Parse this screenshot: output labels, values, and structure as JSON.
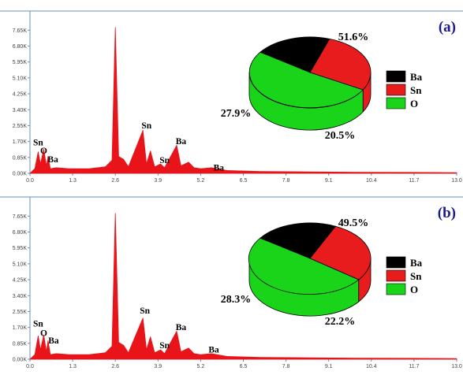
{
  "colors": {
    "spectrum": "#e8141a",
    "Ba": "#000000",
    "Sn": "#e81c1c",
    "O": "#19d419",
    "axis": "#6b8fbf",
    "panel_label": "#1a1a8a"
  },
  "chart_data": [
    {
      "panel_label": "(a)",
      "type": "area",
      "y_ticks": [
        "0.00K",
        "0.85K",
        "1.70K",
        "2.55K",
        "3.40K",
        "4.25K",
        "5.10K",
        "5.95K",
        "6.80K",
        "7.65K"
      ],
      "x_ticks": [
        "0.0",
        "1.3",
        "2.6",
        "3.9",
        "5.2",
        "6.5",
        "7.8",
        "9.1",
        "10.4",
        "11.7",
        "13.0"
      ],
      "xlim": [
        0,
        13
      ],
      "ylim": [
        0,
        8.0
      ],
      "spectrum": [
        [
          0.0,
          0.0
        ],
        [
          0.15,
          0.25
        ],
        [
          0.25,
          1.15
        ],
        [
          0.32,
          0.5
        ],
        [
          0.42,
          1.3
        ],
        [
          0.5,
          0.4
        ],
        [
          0.55,
          0.9
        ],
        [
          0.62,
          0.25
        ],
        [
          0.8,
          0.3
        ],
        [
          1.2,
          0.25
        ],
        [
          1.8,
          0.25
        ],
        [
          2.3,
          0.35
        ],
        [
          2.5,
          0.7
        ],
        [
          2.6,
          7.8
        ],
        [
          2.7,
          0.9
        ],
        [
          2.85,
          0.75
        ],
        [
          3.0,
          0.35
        ],
        [
          3.44,
          2.3
        ],
        [
          3.55,
          0.5
        ],
        [
          3.67,
          1.2
        ],
        [
          3.8,
          0.35
        ],
        [
          3.98,
          0.5
        ],
        [
          4.1,
          0.3
        ],
        [
          4.47,
          1.5
        ],
        [
          4.6,
          0.4
        ],
        [
          4.83,
          0.6
        ],
        [
          5.0,
          0.3
        ],
        [
          5.2,
          0.25
        ],
        [
          5.53,
          0.3
        ],
        [
          6.0,
          0.15
        ],
        [
          7.0,
          0.1
        ],
        [
          8.5,
          0.08
        ],
        [
          10.0,
          0.06
        ],
        [
          11.5,
          0.05
        ],
        [
          13.0,
          0.04
        ]
      ],
      "peak_labels": [
        {
          "text": "Sn",
          "x": 0.25,
          "y": 1.5
        },
        {
          "text": "O",
          "x": 0.42,
          "y": 1.05
        },
        {
          "text": "Ba",
          "x": 0.7,
          "y": 0.6
        },
        {
          "text": "Sn",
          "x": 3.55,
          "y": 2.4
        },
        {
          "text": "Sn",
          "x": 4.1,
          "y": 0.55
        },
        {
          "text": "Ba",
          "x": 4.6,
          "y": 1.55
        },
        {
          "text": "Ba",
          "x": 5.75,
          "y": 0.15
        }
      ],
      "pie": {
        "type": "pie",
        "slices": [
          {
            "name": "Ba",
            "value": 20.5,
            "label": "20.5%"
          },
          {
            "name": "Sn",
            "value": 27.9,
            "label": "27.9%"
          },
          {
            "name": "O",
            "value": 51.6,
            "label": "51.6%"
          }
        ],
        "legend": [
          "Ba",
          "Sn",
          "O"
        ]
      }
    },
    {
      "panel_label": "(b)",
      "type": "area",
      "y_ticks": [
        "0.00K",
        "0.85K",
        "1.70K",
        "2.55K",
        "3.40K",
        "4.25K",
        "5.10K",
        "5.95K",
        "6.80K",
        "7.65K"
      ],
      "x_ticks": [
        "0.0",
        "1.3",
        "2.6",
        "3.9",
        "5.2",
        "6.5",
        "7.8",
        "9.1",
        "10.4",
        "11.7",
        "13.0"
      ],
      "xlim": [
        0,
        13
      ],
      "ylim": [
        0,
        8.0
      ],
      "spectrum": [
        [
          0.0,
          0.0
        ],
        [
          0.15,
          0.25
        ],
        [
          0.25,
          1.25
        ],
        [
          0.32,
          0.5
        ],
        [
          0.42,
          1.3
        ],
        [
          0.5,
          0.4
        ],
        [
          0.55,
          1.0
        ],
        [
          0.62,
          0.25
        ],
        [
          0.8,
          0.3
        ],
        [
          1.2,
          0.25
        ],
        [
          1.8,
          0.25
        ],
        [
          2.3,
          0.35
        ],
        [
          2.5,
          0.7
        ],
        [
          2.6,
          7.8
        ],
        [
          2.7,
          0.9
        ],
        [
          2.85,
          0.75
        ],
        [
          3.0,
          0.35
        ],
        [
          3.44,
          2.2
        ],
        [
          3.55,
          0.5
        ],
        [
          3.67,
          1.2
        ],
        [
          3.8,
          0.35
        ],
        [
          3.98,
          0.5
        ],
        [
          4.1,
          0.3
        ],
        [
          4.47,
          1.5
        ],
        [
          4.6,
          0.4
        ],
        [
          4.83,
          0.6
        ],
        [
          5.0,
          0.3
        ],
        [
          5.2,
          0.25
        ],
        [
          5.53,
          0.3
        ],
        [
          6.0,
          0.15
        ],
        [
          7.0,
          0.1
        ],
        [
          8.5,
          0.08
        ],
        [
          10.0,
          0.06
        ],
        [
          11.5,
          0.05
        ],
        [
          13.0,
          0.04
        ]
      ],
      "peak_labels": [
        {
          "text": "Sn",
          "x": 0.25,
          "y": 1.75
        },
        {
          "text": "O",
          "x": 0.42,
          "y": 1.25
        },
        {
          "text": "Ba",
          "x": 0.72,
          "y": 0.85
        },
        {
          "text": "Sn",
          "x": 3.5,
          "y": 2.45
        },
        {
          "text": "Sn",
          "x": 4.1,
          "y": 0.6
        },
        {
          "text": "Ba",
          "x": 4.6,
          "y": 1.55
        },
        {
          "text": "Ba",
          "x": 5.6,
          "y": 0.35
        }
      ],
      "pie": {
        "type": "pie",
        "slices": [
          {
            "name": "Ba",
            "value": 22.2,
            "label": "22.2%"
          },
          {
            "name": "Sn",
            "value": 28.3,
            "label": "28.3%"
          },
          {
            "name": "O",
            "value": 49.5,
            "label": "49.5%"
          }
        ],
        "legend": [
          "Ba",
          "Sn",
          "O"
        ]
      }
    }
  ]
}
